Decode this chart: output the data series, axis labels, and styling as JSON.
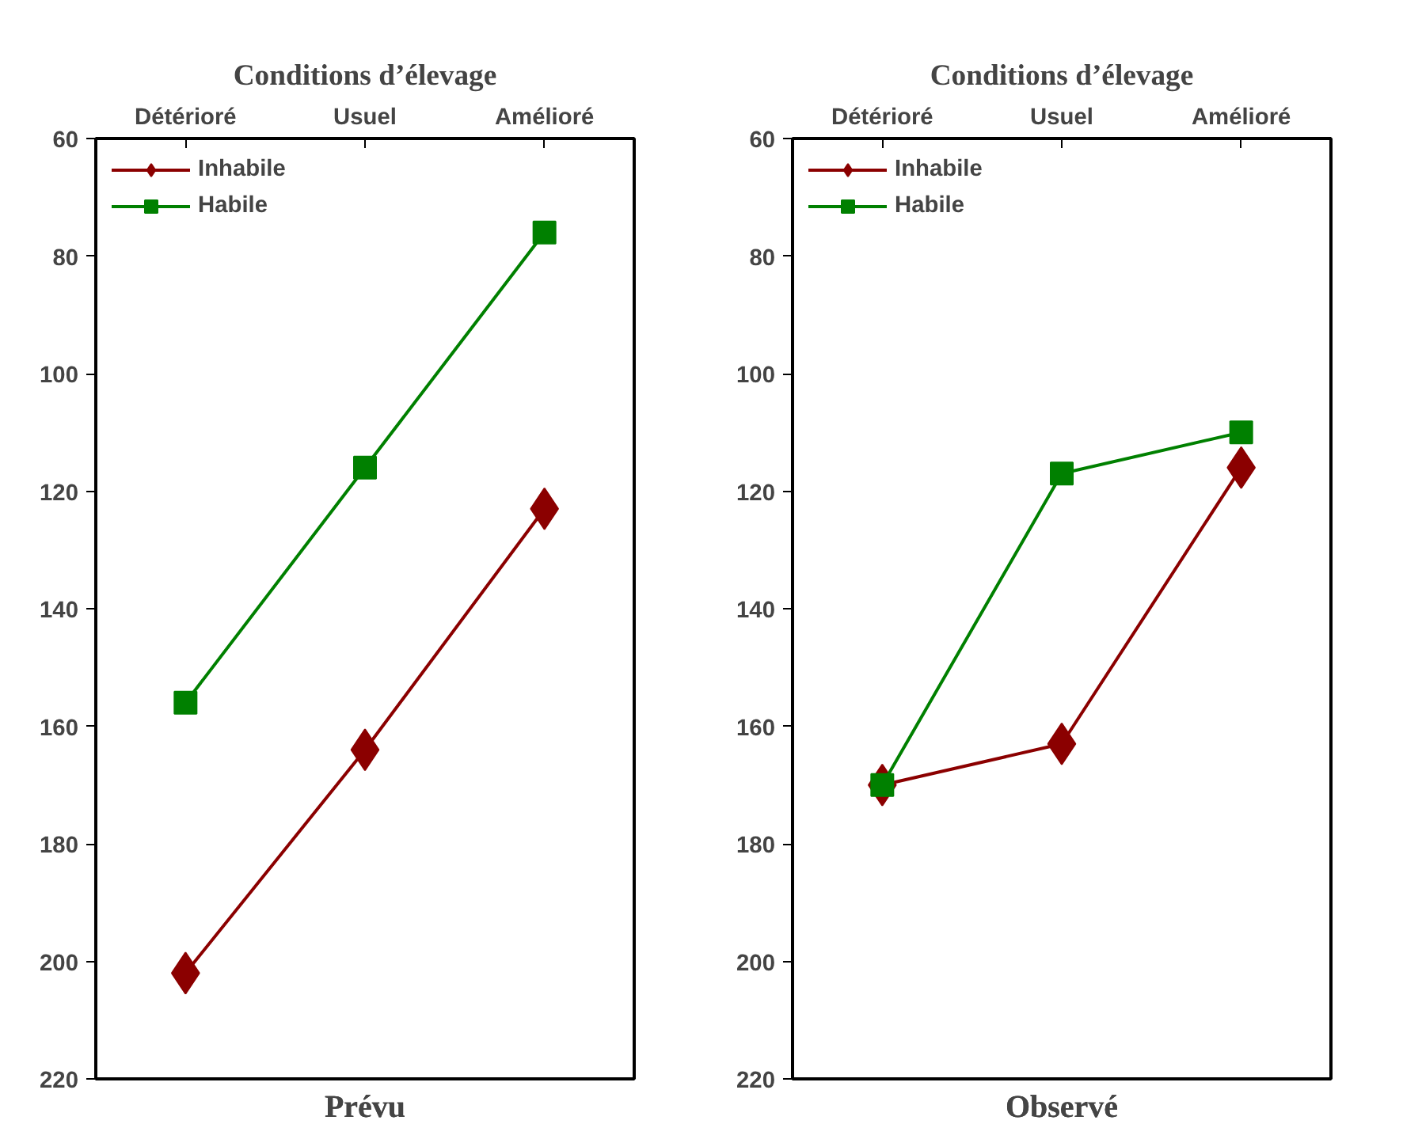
{
  "chart_data": [
    {
      "type": "line",
      "title": "Prévu",
      "xlabel": "Conditions d’élevage",
      "categories": [
        "Détérioré",
        "Usuel",
        "Amélioré"
      ],
      "ylim": [
        220,
        60
      ],
      "yticks": [
        60,
        80,
        100,
        120,
        140,
        160,
        180,
        200,
        220
      ],
      "grid": false,
      "legend": "top left",
      "series": [
        {
          "name": "Inhabile",
          "color": "#8b0000",
          "marker": "diamond",
          "values": [
            202,
            164,
            123
          ]
        },
        {
          "name": "Habile",
          "color": "#008000",
          "marker": "square",
          "values": [
            156,
            116,
            76
          ]
        }
      ]
    },
    {
      "type": "line",
      "title": "Observé",
      "xlabel": "Conditions d’élevage",
      "categories": [
        "Détérioré",
        "Usuel",
        "Amélioré"
      ],
      "ylim": [
        220,
        60
      ],
      "yticks": [
        60,
        80,
        100,
        120,
        140,
        160,
        180,
        200,
        220
      ],
      "grid": false,
      "legend": "top left",
      "series": [
        {
          "name": "Inhabile",
          "color": "#8b0000",
          "marker": "diamond",
          "values": [
            170,
            163,
            116
          ]
        },
        {
          "name": "Habile",
          "color": "#008000",
          "marker": "square",
          "values": [
            170,
            117,
            110
          ]
        }
      ]
    }
  ]
}
